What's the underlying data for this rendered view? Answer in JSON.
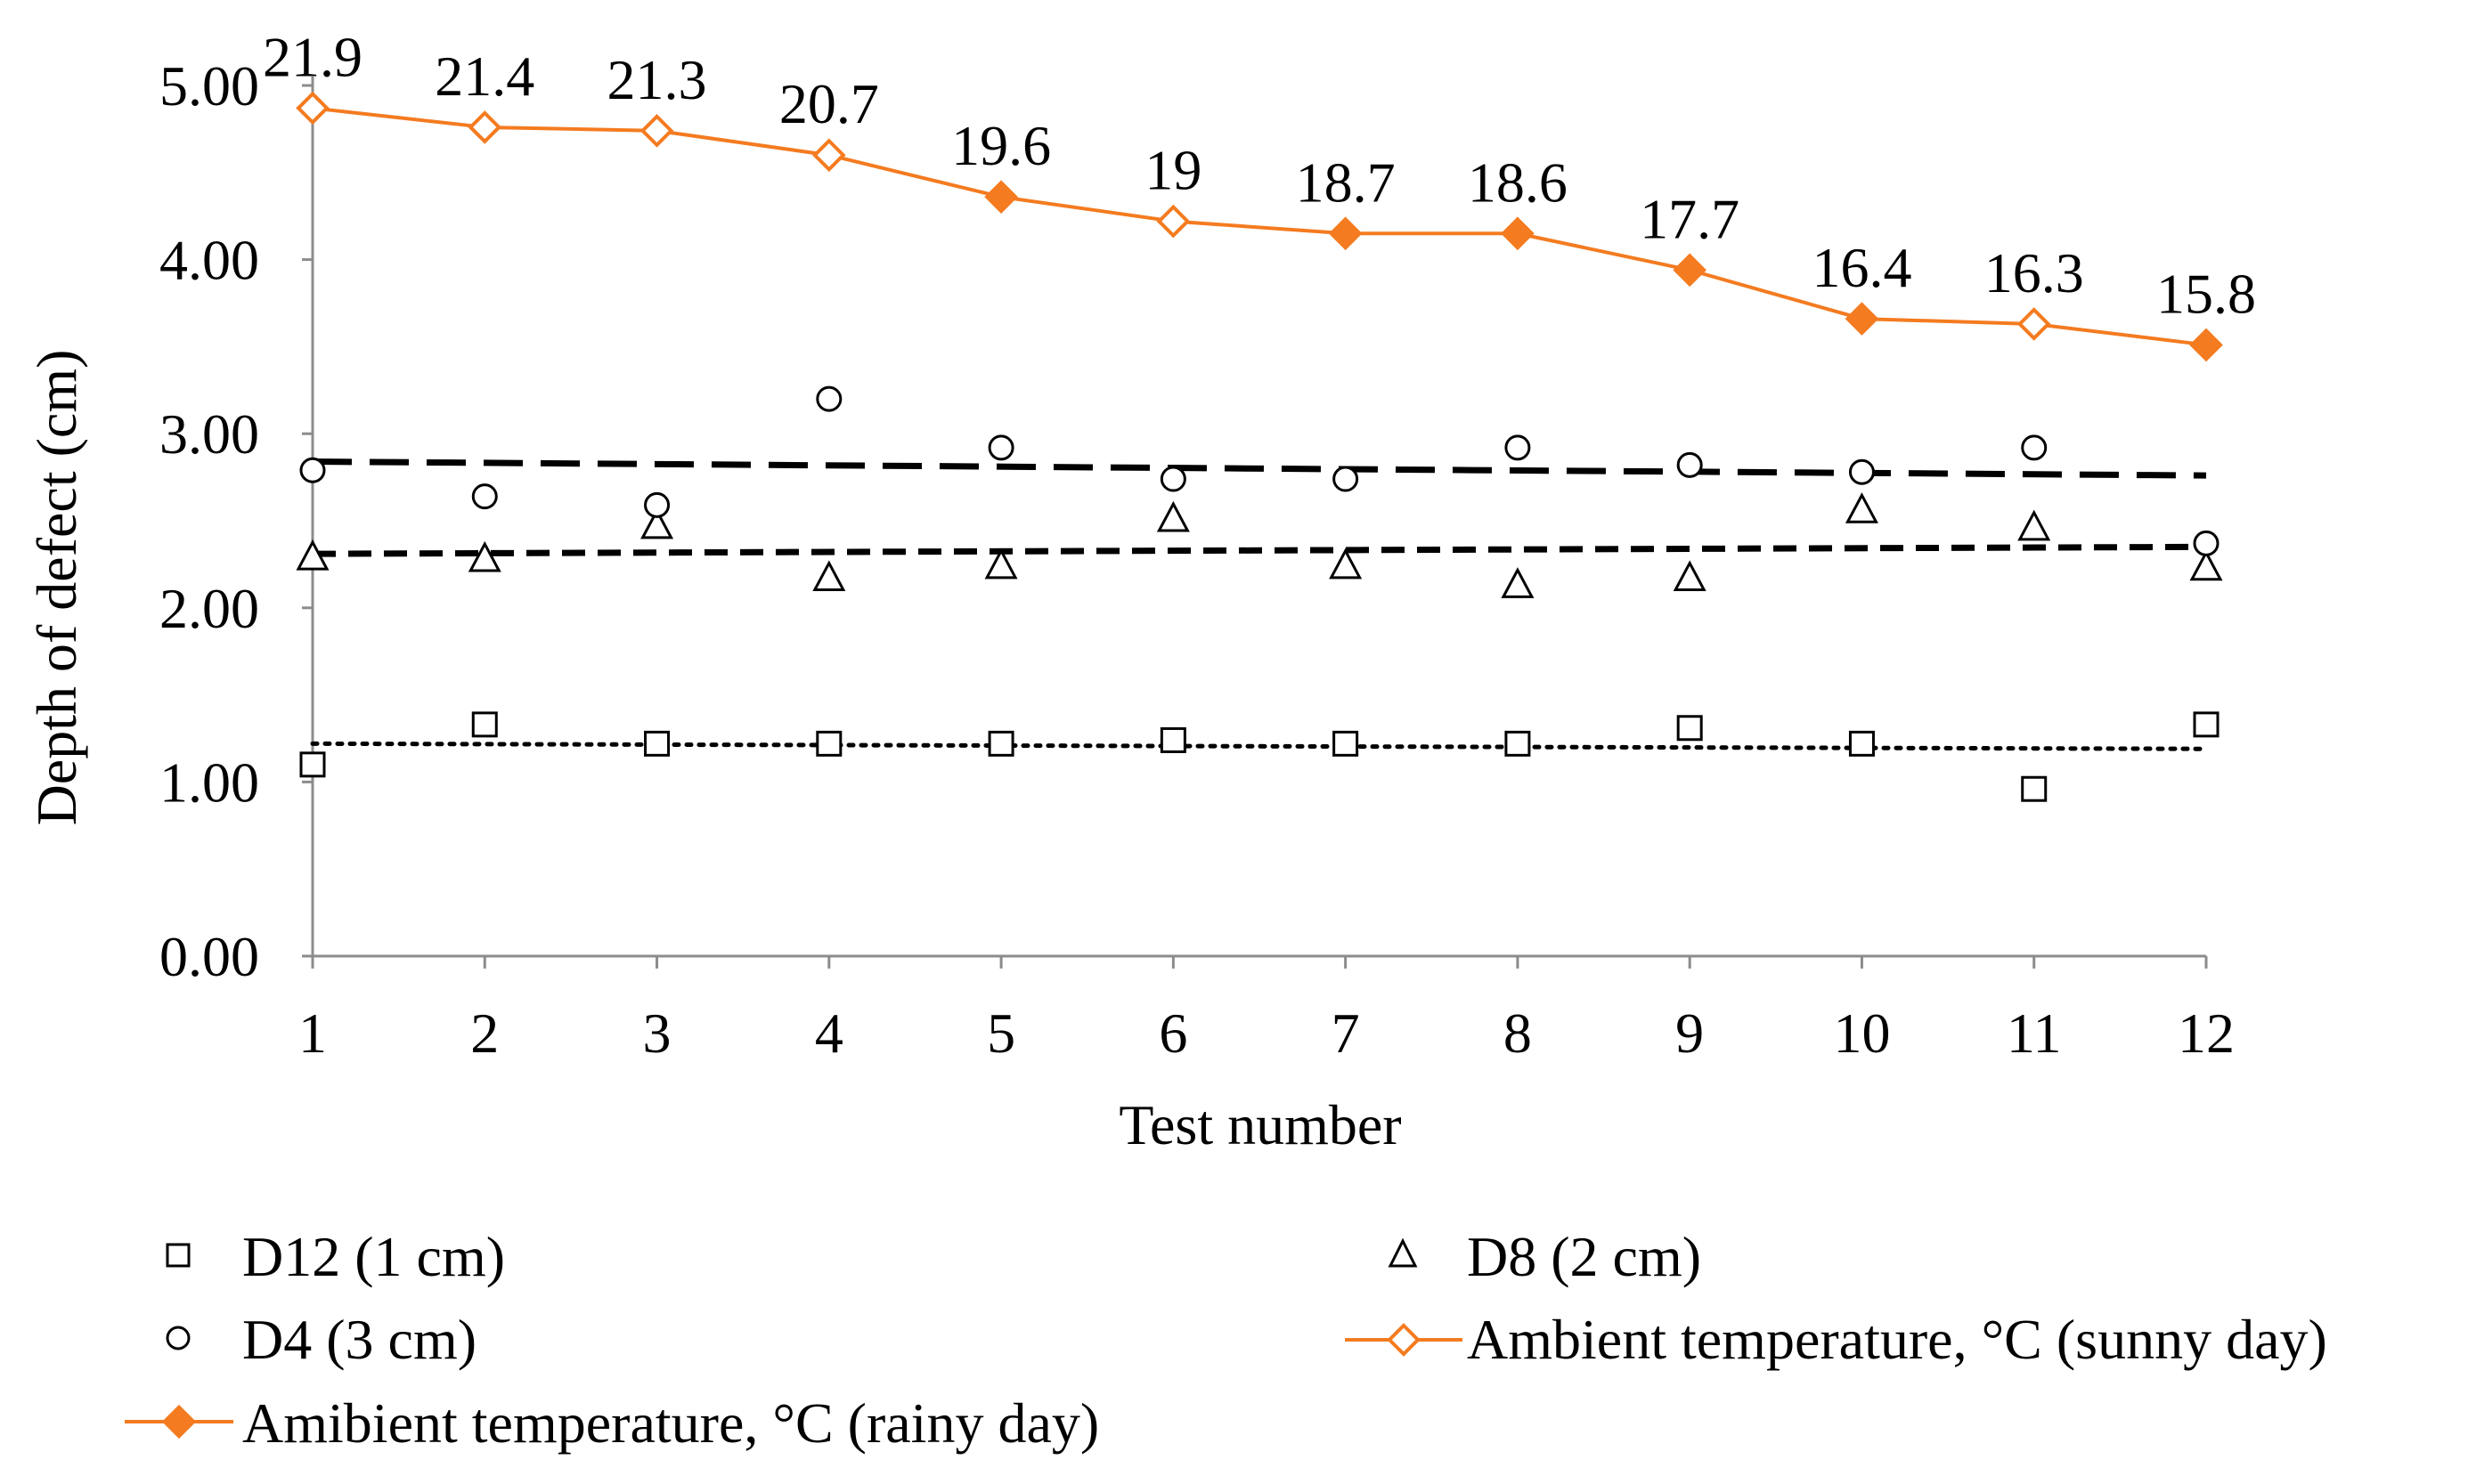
{
  "chart_data": {
    "type": "line",
    "title": "",
    "xlabel": "Test number",
    "ylabel": "Depth of defect (cm)",
    "x": [
      1,
      2,
      3,
      4,
      5,
      6,
      7,
      8,
      9,
      10,
      11,
      12
    ],
    "x_tick_labels": [
      "1",
      "2",
      "3",
      "4",
      "5",
      "6",
      "7",
      "8",
      "9",
      "10",
      "11",
      "12"
    ],
    "ylim": [
      0,
      5
    ],
    "y_tick_labels": [
      "0.00",
      "1.00",
      "2.00",
      "3.00",
      "4.00",
      "5.00"
    ],
    "grid": false,
    "legend_position": "bottom",
    "series": [
      {
        "key": "d12",
        "name": "D12 (1 cm)",
        "marker": "square-open",
        "color": "#000000",
        "values": [
          1.1,
          1.33,
          1.22,
          1.22,
          1.22,
          1.24,
          1.22,
          1.22,
          1.31,
          1.22,
          0.96,
          1.33
        ],
        "trend": {
          "style": "dotted",
          "start": 1.22,
          "end": 1.19
        }
      },
      {
        "key": "d8",
        "name": "D8 (2 cm)",
        "marker": "triangle-open",
        "color": "#000000",
        "values": [
          2.29,
          2.28,
          2.47,
          2.17,
          2.24,
          2.51,
          2.24,
          2.13,
          2.17,
          2.56,
          2.46,
          2.23
        ],
        "trend": {
          "style": "short-dash",
          "start": 2.31,
          "end": 2.35
        }
      },
      {
        "key": "d4",
        "name": "D4 (3 cm)",
        "marker": "circle-open",
        "color": "#000000",
        "values": [
          2.79,
          2.64,
          2.59,
          3.2,
          2.92,
          2.74,
          2.74,
          2.92,
          2.82,
          2.78,
          2.92,
          2.37
        ],
        "trend": {
          "style": "long-dash",
          "start": 2.84,
          "end": 2.76
        }
      },
      {
        "key": "temp",
        "name_sunny": "Ambient temperature, °C (sunny day)",
        "name_rainy": "Amibient temperature, °C (rainy day)",
        "color": "#F47B20",
        "values": [
          4.87,
          4.76,
          4.74,
          4.6,
          4.36,
          4.22,
          4.15,
          4.15,
          3.94,
          3.66,
          3.63,
          3.51
        ],
        "day_type": [
          "sunny",
          "sunny",
          "sunny",
          "sunny",
          "rainy",
          "sunny",
          "rainy",
          "rainy",
          "rainy",
          "rainy",
          "sunny",
          "rainy"
        ],
        "data_labels": [
          "21.9",
          "21.4",
          "21.3",
          "20.7",
          "19.6",
          "19",
          "18.7",
          "18.6",
          "17.7",
          "16.4",
          "16.3",
          "15.8"
        ]
      }
    ]
  }
}
